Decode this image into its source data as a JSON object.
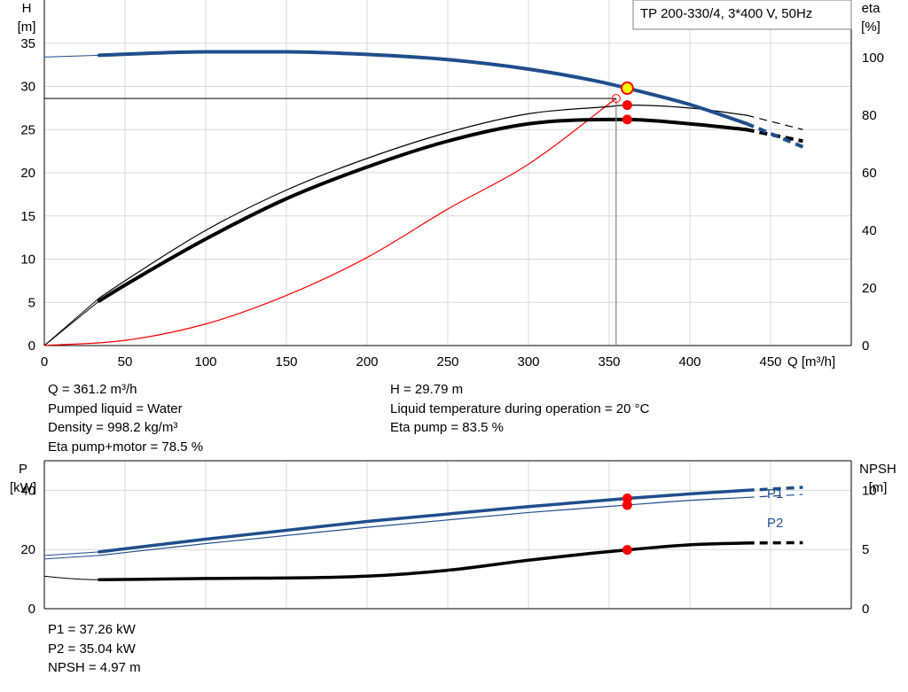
{
  "chart_data": [
    {
      "type": "line",
      "title": "TP 200-330/4, 3*400 V, 50Hz",
      "xlabel": "Q [m³/h]",
      "ylabel": [
        "H",
        "[m]"
      ],
      "y2label": [
        "eta",
        "[%]"
      ],
      "xlim": [
        0,
        500
      ],
      "ylim": [
        0,
        40
      ],
      "y2lim": [
        0,
        120
      ],
      "xticks": [
        0,
        50,
        100,
        150,
        200,
        250,
        300,
        350,
        400,
        450
      ],
      "yticks": [
        0,
        5,
        10,
        15,
        20,
        25,
        30,
        35
      ],
      "y2ticks": [
        0,
        20,
        40,
        60,
        80,
        100
      ],
      "grid": true,
      "series": [
        {
          "axis": "H",
          "color": "#1f4e8c",
          "x": [
            34,
            60,
            100,
            150,
            200,
            250,
            300,
            340,
            361.2,
            400,
            435,
            470
          ],
          "y": [
            33.6,
            33.8,
            34.0,
            34.0,
            33.7,
            33.1,
            32.0,
            30.7,
            29.79,
            27.9,
            25.7,
            23.0
          ],
          "dashed_from": 435
        },
        {
          "axis": "eta",
          "color": "#000000",
          "x": [
            34,
            50,
            100,
            150,
            200,
            250,
            300,
            350,
            361.2,
            400,
            435,
            470
          ],
          "y": [
            15.5,
            21,
            37,
            51,
            62,
            71,
            77,
            78.5,
            78.5,
            77,
            75,
            71
          ],
          "dashed_from": 435
        },
        {
          "axis": "eta",
          "color": "#000000",
          "x": [
            34,
            50,
            100,
            150,
            200,
            250,
            300,
            350,
            361.2,
            400,
            435,
            470
          ],
          "y": [
            16.5,
            22.5,
            40,
            54,
            65,
            74,
            80.5,
            83,
            83.5,
            82.5,
            80,
            75
          ],
          "dashed_from": 435,
          "thin": true
        },
        {
          "axis": "H",
          "color": "#ff0000",
          "thin": true,
          "x": [
            0,
            50,
            100,
            150,
            200,
            250,
            300,
            354.3
          ],
          "y": [
            0,
            0.6,
            2.5,
            5.8,
            10.2,
            15.8,
            21.0,
            28.6
          ]
        }
      ],
      "duty_point": {
        "Q": 361.2,
        "H": 29.79
      },
      "required_point": {
        "Q": 354.3,
        "H": 28.6
      }
    },
    {
      "type": "line",
      "xlim": [
        0,
        500
      ],
      "ylim": [
        0,
        50
      ],
      "y2lim": [
        0,
        12.5
      ],
      "ylabel": [
        "P",
        "[kW]"
      ],
      "y2label": [
        "NPSH",
        "[m]"
      ],
      "yticks": [
        0,
        20,
        40
      ],
      "y2ticks": [
        0,
        5,
        10
      ],
      "grid": true,
      "series": [
        {
          "name": "P1",
          "axis": "P",
          "color": "#1f4e8c",
          "x": [
            34,
            100,
            200,
            300,
            361.2,
            400,
            435,
            470
          ],
          "y": [
            19.2,
            23.5,
            29.5,
            34.5,
            37.26,
            38.8,
            40.0,
            41.0
          ],
          "dashed_from": 435
        },
        {
          "name": "P2",
          "axis": "P",
          "color": "#1f4e8c",
          "thin": true,
          "x": [
            34,
            100,
            200,
            300,
            361.2,
            400,
            435,
            470
          ],
          "y": [
            18.0,
            22.0,
            27.5,
            32.5,
            35.04,
            36.6,
            37.6,
            38.6
          ],
          "dashed_from": 435
        },
        {
          "name": "NPSH",
          "axis": "NPSH",
          "color": "#000000",
          "x": [
            34,
            100,
            200,
            250,
            300,
            340,
            361.2,
            400,
            435,
            470
          ],
          "y": [
            2.45,
            2.55,
            2.75,
            3.25,
            4.1,
            4.7,
            4.97,
            5.4,
            5.55,
            5.58
          ],
          "dashed_from": 435
        }
      ],
      "markers": [
        {
          "axis": "P",
          "Q": 361.2,
          "value": 37.26
        },
        {
          "axis": "P",
          "Q": 361.2,
          "value": 35.04
        },
        {
          "axis": "NPSH",
          "Q": 361.2,
          "value": 4.97
        }
      ]
    }
  ],
  "info_top_left": [
    "Q = 361.2 m³/h",
    "Pumped liquid = Water",
    "Density = 998.2 kg/m³",
    "Eta pump+motor = 78.5 %"
  ],
  "info_top_right": [
    "H = 29.79 m",
    "Liquid temperature during operation = 20 °C",
    "Eta pump = 83.5 %"
  ],
  "info_bottom": [
    "P1 = 37.26 kW",
    "P2 = 35.04 kW",
    "NPSH = 4.97 m"
  ],
  "colors": {
    "blue": "#1f4e8c",
    "red": "#ff0000",
    "marker_yellow": "#ffff00"
  }
}
